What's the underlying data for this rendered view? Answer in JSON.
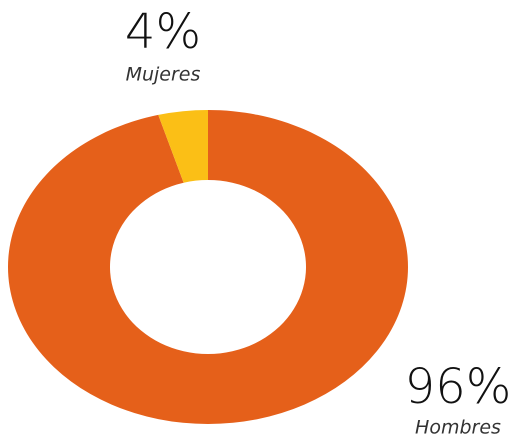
{
  "chart_data": {
    "type": "pie",
    "donut": true,
    "categories": [
      "Hombres",
      "Mujeres"
    ],
    "values": [
      96,
      4
    ],
    "value_labels": [
      "96%",
      "4%"
    ],
    "colors": [
      "#e5601a",
      "#fbbf16"
    ]
  }
}
